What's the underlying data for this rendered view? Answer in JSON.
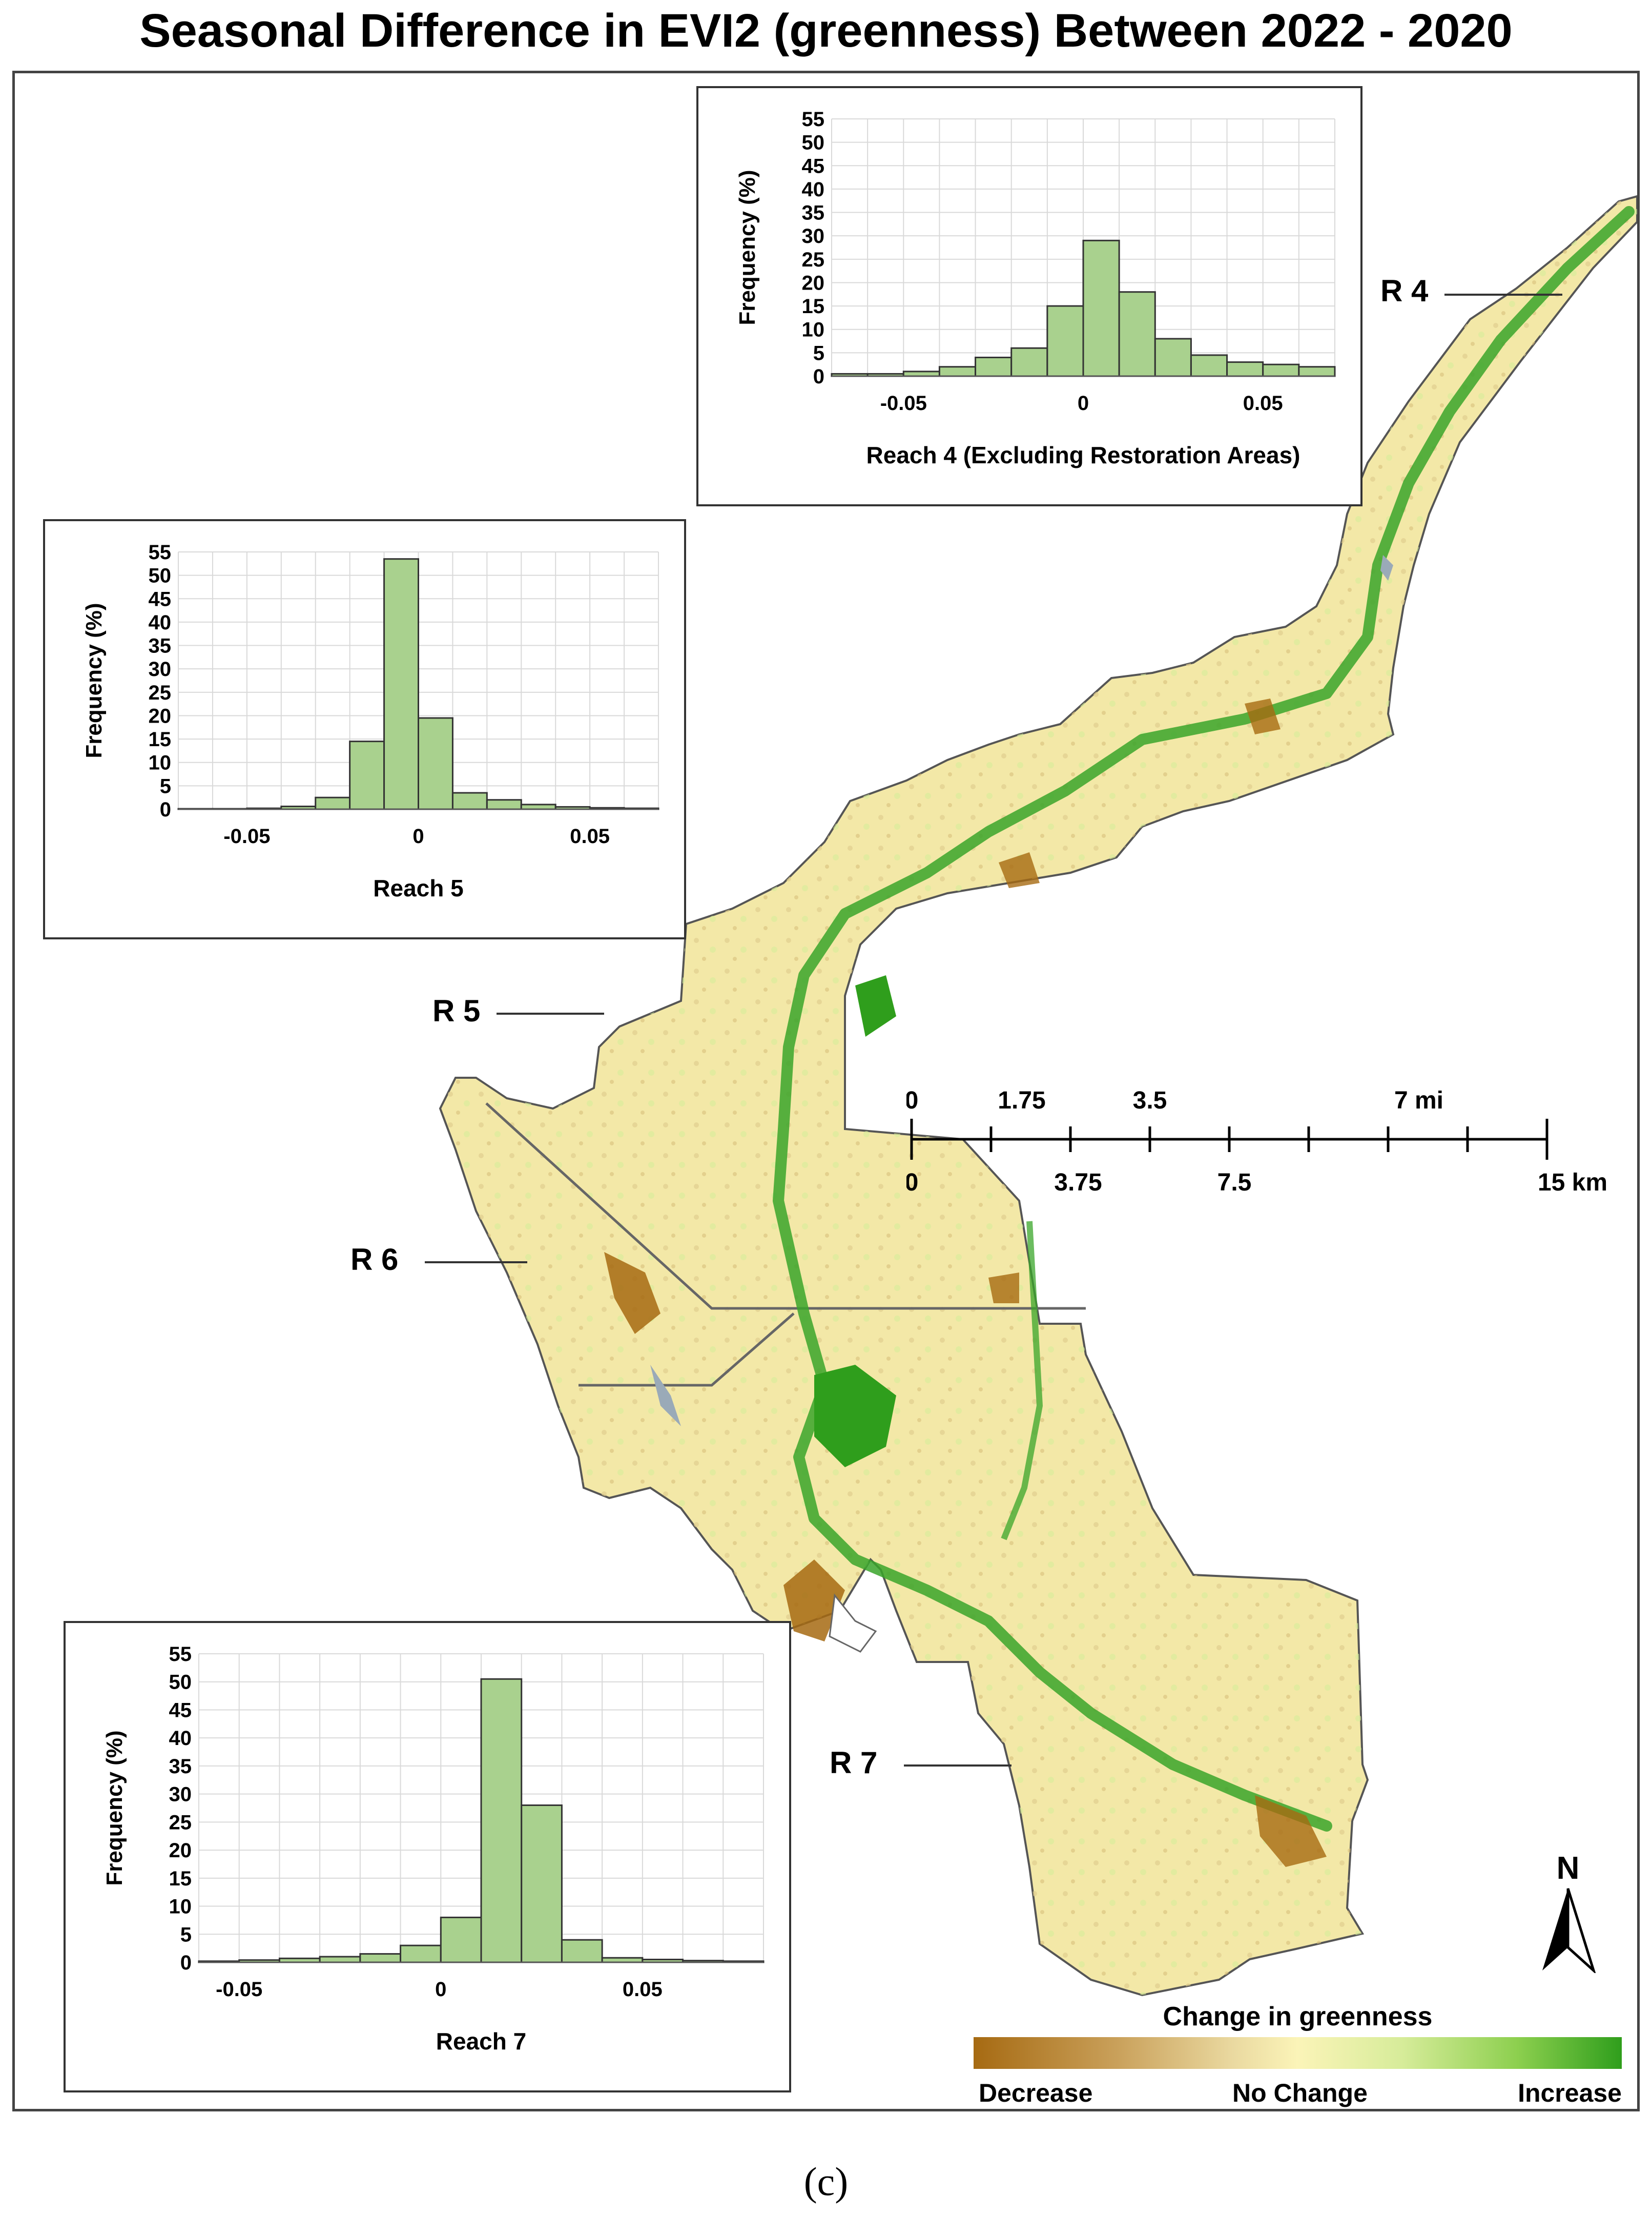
{
  "title": "Seasonal Difference in EVI2 (greenness) Between 2022 - 2020",
  "panel_label": "(c)",
  "colors": {
    "decrease": "#a66a12",
    "no_change": "#fbf4b8",
    "increase": "#2f9e1c",
    "bar_fill": "#a9d18e",
    "bar_stroke": "#333333",
    "river_blue": "#9aaab8"
  },
  "reach_labels": {
    "r4": "R 4",
    "r5": "R 5",
    "r6": "R 6",
    "r7": "R 7"
  },
  "scale": {
    "top_labels": [
      "0",
      "1.75",
      "3.5",
      "7 mi"
    ],
    "bottom_labels": [
      "0",
      "3.75",
      "7.5",
      "15 km"
    ]
  },
  "legend": {
    "title": "Change in greenness",
    "low": "Decrease",
    "mid": "No Change",
    "high": "Increase"
  },
  "north": {
    "letter": "N",
    "icon": "north-arrow-icon"
  },
  "chart_data": [
    {
      "type": "bar",
      "title": "",
      "xlabel": "Reach 4 (Excluding Restoration Areas)",
      "ylabel": "Frequency (%)",
      "xlim": [
        -0.07,
        0.07
      ],
      "ylim": [
        0,
        55
      ],
      "yticks": [
        "0",
        "5",
        "10",
        "15",
        "20",
        "25",
        "30",
        "35",
        "40",
        "45",
        "50",
        "55"
      ],
      "xticks": [
        "-0.05",
        "0",
        "0.05"
      ],
      "bin_width": 0.01,
      "x": [
        -0.065,
        -0.055,
        -0.045,
        -0.035,
        -0.025,
        -0.015,
        -0.005,
        0.005,
        0.015,
        0.025,
        0.035,
        0.045,
        0.055,
        0.065
      ],
      "values": [
        0.5,
        0.5,
        1,
        2,
        4,
        6,
        15,
        29,
        18,
        8,
        4.5,
        3,
        2.5,
        2
      ],
      "grid": true
    },
    {
      "type": "bar",
      "title": "",
      "xlabel": "Reach 5",
      "ylabel": "Frequency (%)",
      "xlim": [
        -0.07,
        0.07
      ],
      "ylim": [
        0,
        55
      ],
      "yticks": [
        "0",
        "5",
        "10",
        "15",
        "20",
        "25",
        "30",
        "35",
        "40",
        "45",
        "50",
        "55"
      ],
      "xticks": [
        "-0.05",
        "0",
        "0.05"
      ],
      "bin_width": 0.01,
      "x": [
        -0.065,
        -0.055,
        -0.045,
        -0.035,
        -0.025,
        -0.015,
        -0.005,
        0.005,
        0.015,
        0.025,
        0.035,
        0.045,
        0.055,
        0.065
      ],
      "values": [
        0.1,
        0.1,
        0.2,
        0.6,
        2.5,
        14.5,
        53.5,
        19.5,
        3.5,
        2,
        1,
        0.5,
        0.3,
        0.2
      ],
      "grid": true
    },
    {
      "type": "bar",
      "title": "",
      "xlabel": "Reach 7",
      "ylabel": "Frequency (%)",
      "xlim": [
        -0.06,
        0.08
      ],
      "ylim": [
        0,
        55
      ],
      "yticks": [
        "0",
        "5",
        "10",
        "15",
        "20",
        "25",
        "30",
        "35",
        "40",
        "45",
        "50",
        "55"
      ],
      "xticks": [
        "-0.05",
        "0",
        "0.05"
      ],
      "bin_width": 0.01,
      "x": [
        -0.055,
        -0.045,
        -0.035,
        -0.025,
        -0.015,
        -0.005,
        0.005,
        0.015,
        0.025,
        0.035,
        0.045,
        0.055,
        0.065,
        0.075
      ],
      "values": [
        0.2,
        0.4,
        0.7,
        1,
        1.5,
        3,
        8,
        50.5,
        28,
        4,
        0.8,
        0.5,
        0.3,
        0.2
      ],
      "grid": true
    }
  ]
}
